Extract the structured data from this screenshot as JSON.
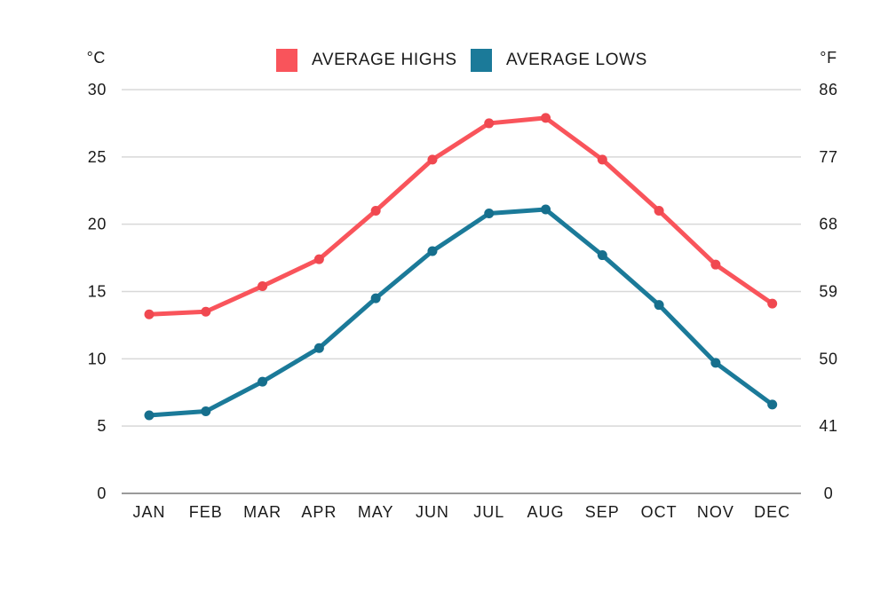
{
  "chart_data": {
    "type": "line",
    "title": "",
    "categories": [
      "JAN",
      "FEB",
      "MAR",
      "APR",
      "MAY",
      "JUN",
      "JUL",
      "AUG",
      "SEP",
      "OCT",
      "NOV",
      "DEC"
    ],
    "series": [
      {
        "name": "AVERAGE HIGHS",
        "color": "#F9545B",
        "marker_color": "#F04850",
        "values": [
          13.3,
          13.5,
          15.4,
          17.4,
          21.0,
          24.8,
          27.5,
          27.9,
          24.8,
          21.0,
          17.0,
          14.1
        ]
      },
      {
        "name": "AVERAGE LOWS",
        "color": "#1B7A99",
        "marker_color": "#166F8D",
        "values": [
          5.8,
          6.1,
          8.3,
          10.8,
          14.5,
          18.0,
          20.8,
          21.1,
          17.7,
          14.0,
          9.7,
          6.6
        ]
      }
    ],
    "y_axis_left": {
      "label": "°C",
      "ticks": [
        30,
        25,
        20,
        15,
        10,
        5,
        0
      ],
      "range": [
        0,
        30
      ]
    },
    "y_axis_right": {
      "label": "°F",
      "ticks": [
        86,
        77,
        68,
        59,
        50,
        41,
        0
      ]
    },
    "grid": true,
    "legend_position": "top-center"
  },
  "colors": {
    "background": "#FFFFFF",
    "gridline": "#D8D8D8",
    "axis_line": "#9A9A9A",
    "text": "#1A1A1A"
  }
}
